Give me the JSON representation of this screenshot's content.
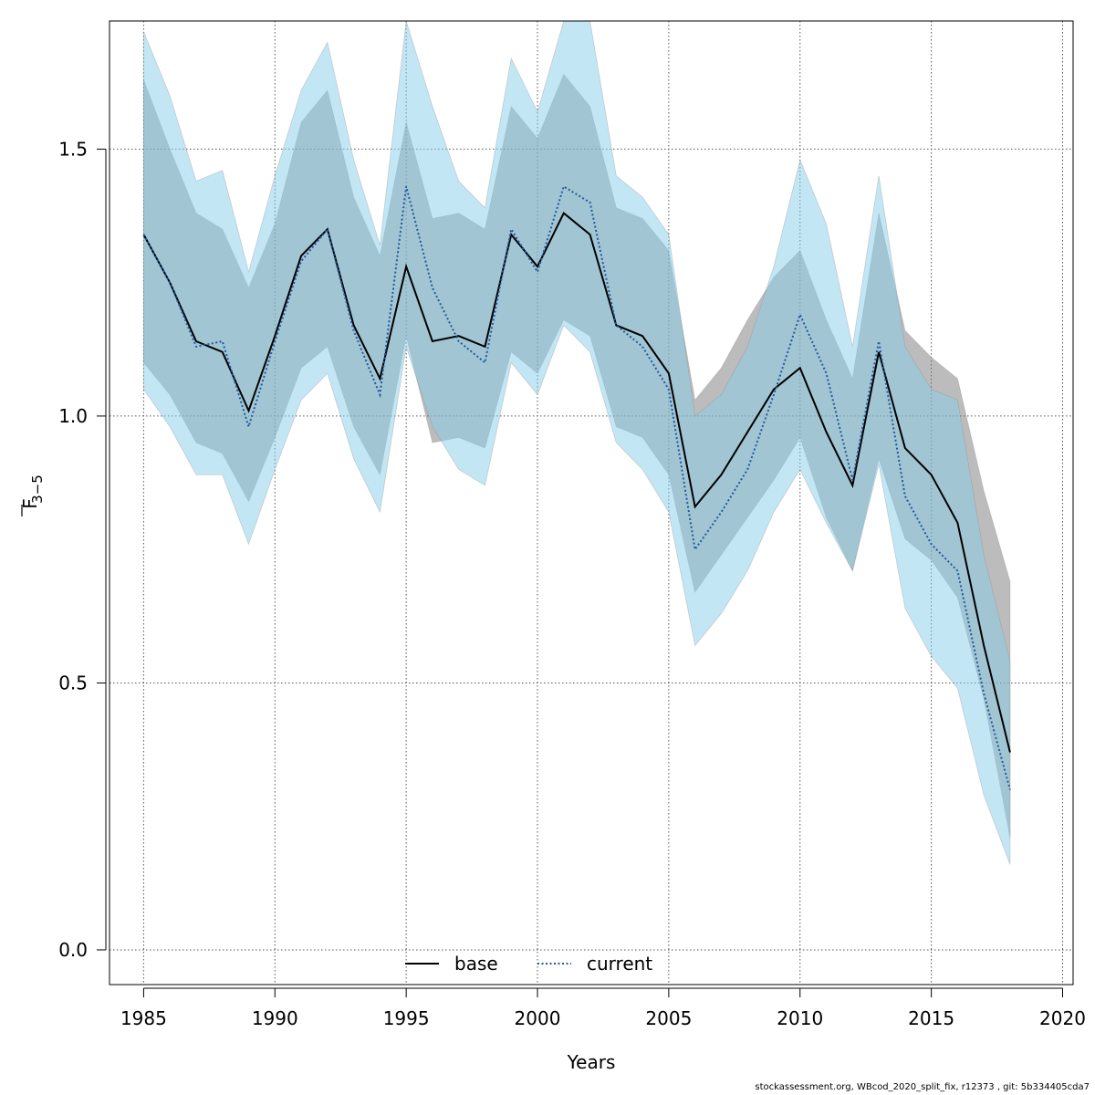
{
  "chart_data": {
    "type": "line",
    "xlabel": "Years",
    "ylabel_main": "F",
    "ylabel_sub": "3−5",
    "xlim": [
      1983.7,
      2020.4
    ],
    "ylim": [
      -0.065,
      1.74
    ],
    "xticks": [
      1985,
      1990,
      1995,
      2000,
      2005,
      2010,
      2015,
      2020
    ],
    "yticks": [
      "0.0",
      "0.5",
      "1.0",
      "1.5"
    ],
    "grid": true,
    "legend_position": "bottom-center",
    "x": [
      1985,
      1986,
      1987,
      1988,
      1989,
      1990,
      1991,
      1992,
      1993,
      1994,
      1995,
      1996,
      1997,
      1998,
      1999,
      2000,
      2001,
      2002,
      2003,
      2004,
      2005,
      2006,
      2007,
      2008,
      2009,
      2010,
      2011,
      2012,
      2013,
      2014,
      2015,
      2016,
      2017,
      2018
    ],
    "series": [
      {
        "name": "base",
        "color": "#000000",
        "band_color": "#7a7a7a",
        "line_style": "solid",
        "values": [
          1.34,
          1.25,
          1.14,
          1.12,
          1.01,
          1.15,
          1.3,
          1.35,
          1.17,
          1.07,
          1.28,
          1.14,
          1.15,
          1.13,
          1.34,
          1.28,
          1.38,
          1.34,
          1.17,
          1.15,
          1.08,
          0.83,
          0.89,
          0.97,
          1.05,
          1.09,
          0.97,
          0.87,
          1.12,
          0.94,
          0.89,
          0.8,
          0.57,
          0.37
        ],
        "lower": [
          1.1,
          1.04,
          0.95,
          0.93,
          0.84,
          0.96,
          1.09,
          1.13,
          0.98,
          0.89,
          1.15,
          0.95,
          0.96,
          0.94,
          1.12,
          1.08,
          1.18,
          1.15,
          0.98,
          0.96,
          0.89,
          0.67,
          0.74,
          0.81,
          0.88,
          0.96,
          0.81,
          0.71,
          0.92,
          0.77,
          0.73,
          0.66,
          0.47,
          0.21
        ],
        "upper": [
          1.63,
          1.5,
          1.38,
          1.35,
          1.24,
          1.36,
          1.55,
          1.61,
          1.41,
          1.3,
          1.55,
          1.37,
          1.38,
          1.35,
          1.58,
          1.52,
          1.64,
          1.58,
          1.39,
          1.37,
          1.31,
          1.03,
          1.09,
          1.18,
          1.26,
          1.31,
          1.18,
          1.07,
          1.38,
          1.16,
          1.11,
          1.07,
          0.86,
          0.69
        ]
      },
      {
        "name": "current",
        "color": "#1f5a9a",
        "band_color": "#87ceeb",
        "line_style": "dotted",
        "values": [
          1.34,
          1.25,
          1.13,
          1.14,
          0.98,
          1.14,
          1.29,
          1.35,
          1.16,
          1.04,
          1.43,
          1.24,
          1.14,
          1.1,
          1.35,
          1.27,
          1.43,
          1.4,
          1.17,
          1.13,
          1.05,
          0.75,
          0.82,
          0.9,
          1.04,
          1.19,
          1.08,
          0.88,
          1.14,
          0.85,
          0.76,
          0.71,
          0.48,
          0.3
        ],
        "lower": [
          1.05,
          0.98,
          0.89,
          0.89,
          0.76,
          0.9,
          1.03,
          1.08,
          0.92,
          0.82,
          1.13,
          0.98,
          0.9,
          0.87,
          1.1,
          1.04,
          1.17,
          1.12,
          0.95,
          0.9,
          0.82,
          0.57,
          0.63,
          0.71,
          0.82,
          0.9,
          0.8,
          0.71,
          0.91,
          0.64,
          0.55,
          0.49,
          0.29,
          0.16
        ],
        "upper": [
          1.72,
          1.6,
          1.44,
          1.46,
          1.27,
          1.45,
          1.61,
          1.7,
          1.48,
          1.32,
          1.74,
          1.58,
          1.44,
          1.39,
          1.67,
          1.57,
          1.74,
          1.74,
          1.45,
          1.41,
          1.34,
          1.0,
          1.04,
          1.13,
          1.28,
          1.48,
          1.36,
          1.13,
          1.45,
          1.13,
          1.05,
          1.03,
          0.74,
          0.54
        ]
      }
    ]
  },
  "footer": "stockassessment.org, WBcod_2020_split_fix, r12373 , git: 5b334405cda7"
}
